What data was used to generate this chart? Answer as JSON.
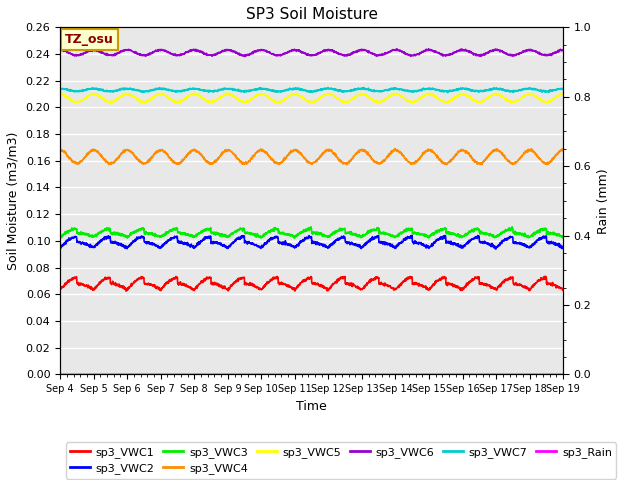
{
  "title": "SP3 Soil Moisture",
  "xlabel": "Time",
  "ylabel_left": "Soil Moisture (m3/m3)",
  "ylabel_right": "Rain (mm)",
  "ylim_left": [
    0.0,
    0.26
  ],
  "ylim_right": [
    0.0,
    1.0
  ],
  "x_tick_labels": [
    "Sep 4",
    "Sep 5",
    "Sep 6",
    "Sep 7",
    "Sep 8",
    "Sep 9",
    "Sep 10",
    "Sep 11",
    "Sep 12",
    "Sep 13",
    "Sep 14",
    "Sep 15",
    "Sep 16",
    "Sep 17",
    "Sep 18",
    "Sep 19"
  ],
  "n_points": 2000,
  "annotation_text": "TZ_osu",
  "annotation_bg": "#FFFFCC",
  "annotation_border": "#CC9900",
  "series": [
    {
      "name": "sp3_VWC1",
      "color": "#FF0000",
      "base": 0.068,
      "amp": 0.009,
      "noise": 0.0005
    },
    {
      "name": "sp3_VWC2",
      "color": "#0000FF",
      "base": 0.099,
      "amp": 0.008,
      "noise": 0.0005
    },
    {
      "name": "sp3_VWC3",
      "color": "#00EE00",
      "base": 0.106,
      "amp": 0.006,
      "noise": 0.0005
    },
    {
      "name": "sp3_VWC4",
      "color": "#FF8C00",
      "base": 0.163,
      "amp": 0.005,
      "noise": 0.0004
    },
    {
      "name": "sp3_VWC5",
      "color": "#FFFF00",
      "base": 0.207,
      "amp": 0.003,
      "noise": 0.0003
    },
    {
      "name": "sp3_VWC6",
      "color": "#9900CC",
      "base": 0.241,
      "amp": 0.002,
      "noise": 0.0003
    },
    {
      "name": "sp3_VWC7",
      "color": "#00CCCC",
      "base": 0.213,
      "amp": 0.001,
      "noise": 0.0003
    }
  ],
  "rain": {
    "name": "sp3_Rain",
    "color": "#FF00FF",
    "base": 0.0
  },
  "background_color": "#E8E8E8",
  "grid_color": "white",
  "linewidth": 1.2,
  "legend_order": [
    "sp3_VWC1",
    "sp3_VWC2",
    "sp3_VWC3",
    "sp3_VWC4",
    "sp3_VWC5",
    "sp3_VWC6",
    "sp3_VWC7",
    "sp3_Rain"
  ]
}
